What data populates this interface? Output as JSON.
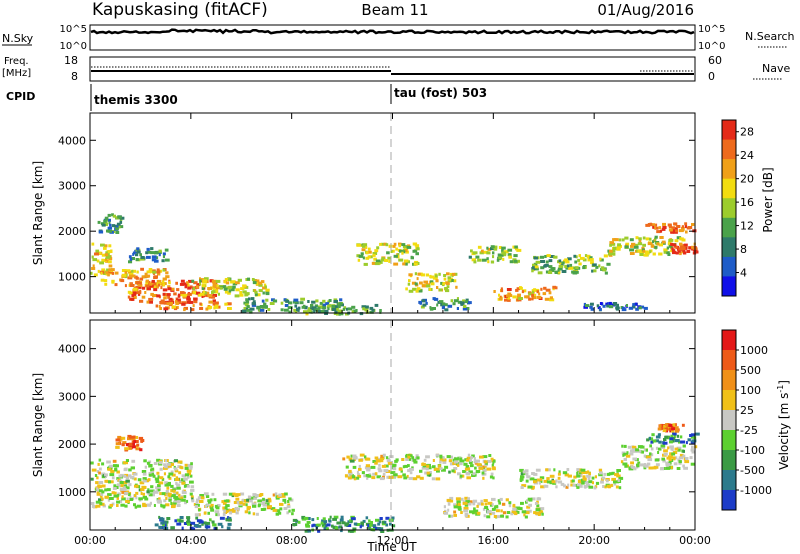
{
  "header": {
    "station": "Kapuskasing (fitACF)",
    "beam": "Beam 11",
    "date": "01/Aug/2016"
  },
  "status_panel": {
    "nsky_label": "N.Sky",
    "nsky_ticks": [
      "10^5",
      "10^0"
    ],
    "nsearch_label": "N.Search",
    "nsearch_ticks": [
      "10^5",
      "10^0"
    ],
    "freq_label": "Freq.",
    "freq_unit": "[MHz]",
    "freq_ticks": [
      "18",
      "8"
    ],
    "nave_label": "Nave",
    "nave_ticks": [
      "60",
      "0"
    ],
    "cpid_label": "CPID",
    "cpid_segments": [
      {
        "name": "themis 3300",
        "start_hour": 0
      },
      {
        "name": "tau (fost) 503",
        "start_hour": 12
      }
    ]
  },
  "chart_data": [
    {
      "type": "heatmap",
      "title": "Power",
      "xlabel": "Time UT",
      "ylabel": "Slant Range [km]",
      "x_ticks": [
        "00:00",
        "04:00",
        "08:00",
        "12:00",
        "16:00",
        "20:00",
        "00:00"
      ],
      "xlim_hours": [
        0,
        24
      ],
      "y_ticks": [
        1000,
        2000,
        3000,
        4000
      ],
      "ylim": [
        200,
        4600
      ],
      "colorbar": {
        "label": "Power [dB]",
        "ticks": [
          "4",
          "8",
          "12",
          "16",
          "20",
          "24",
          "28"
        ],
        "range": [
          0,
          30
        ],
        "colors": [
          "#1010e8",
          "#1e5cc8",
          "#2e7a6a",
          "#4aa24a",
          "#9ccc2c",
          "#f2dc10",
          "#f0a018",
          "#ee6a1c",
          "#e42a18"
        ]
      },
      "regions": [
        {
          "t0": 0.0,
          "t1": 0.8,
          "r0": 1050,
          "r1": 1750,
          "level": 0.62
        },
        {
          "t0": 0.3,
          "t1": 3.0,
          "r0": 800,
          "r1": 1200,
          "level": 0.7
        },
        {
          "t0": 1.5,
          "t1": 5.0,
          "r0": 450,
          "r1": 950,
          "level": 0.82
        },
        {
          "t0": 0.2,
          "t1": 1.2,
          "r0": 2000,
          "r1": 2400,
          "level": 0.35
        },
        {
          "t0": 1.5,
          "t1": 3.0,
          "r0": 1350,
          "r1": 1650,
          "level": 0.3
        },
        {
          "t0": 2.5,
          "t1": 5.5,
          "r0": 300,
          "r1": 500,
          "level": 0.75
        },
        {
          "t0": 4.0,
          "t1": 7.0,
          "r0": 600,
          "r1": 1000,
          "level": 0.55
        },
        {
          "t0": 6.0,
          "t1": 10.0,
          "r0": 250,
          "r1": 550,
          "level": 0.35
        },
        {
          "t0": 8.5,
          "t1": 11.5,
          "r0": 200,
          "r1": 400,
          "level": 0.4
        },
        {
          "t0": 10.5,
          "t1": 13.0,
          "r0": 1300,
          "r1": 1750,
          "level": 0.55
        },
        {
          "t0": 12.5,
          "t1": 14.5,
          "r0": 700,
          "r1": 1100,
          "level": 0.6
        },
        {
          "t0": 13.0,
          "t1": 15.0,
          "r0": 300,
          "r1": 550,
          "level": 0.3
        },
        {
          "t0": 15.0,
          "t1": 17.0,
          "r0": 1350,
          "r1": 1700,
          "level": 0.5
        },
        {
          "t0": 16.0,
          "t1": 18.5,
          "r0": 500,
          "r1": 800,
          "level": 0.72
        },
        {
          "t0": 17.5,
          "t1": 20.5,
          "r0": 1100,
          "r1": 1500,
          "level": 0.45
        },
        {
          "t0": 20.5,
          "t1": 23.5,
          "r0": 1500,
          "r1": 1900,
          "level": 0.55
        },
        {
          "t0": 22.0,
          "t1": 24.0,
          "r0": 2000,
          "r1": 2200,
          "level": 0.85
        },
        {
          "t0": 23.0,
          "t1": 24.0,
          "r0": 1550,
          "r1": 1750,
          "level": 0.92
        },
        {
          "t0": 19.5,
          "t1": 22.0,
          "r0": 300,
          "r1": 450,
          "level": 0.2
        }
      ]
    },
    {
      "type": "heatmap",
      "title": "Velocity",
      "xlabel": "Time UT",
      "ylabel": "Slant Range [km]",
      "x_ticks": [
        "00:00",
        "04:00",
        "08:00",
        "12:00",
        "16:00",
        "20:00",
        "00:00"
      ],
      "xlim_hours": [
        0,
        24
      ],
      "y_ticks": [
        1000,
        2000,
        3000,
        4000
      ],
      "ylim": [
        200,
        4600
      ],
      "colorbar": {
        "label": "Velocity [m s",
        "label_superscript": "-1",
        "label_close": "]",
        "ticks": [
          "1000",
          "500",
          "100",
          "25",
          "-25",
          "-100",
          "-500",
          "-1000"
        ],
        "colors": [
          "#1c3cc8",
          "#2c7a8c",
          "#3a9a44",
          "#5cd030",
          "#c8c8c4",
          "#f0c018",
          "#f09018",
          "#ee5a18",
          "#e41818"
        ]
      },
      "regions": [
        {
          "t0": 0.0,
          "t1": 4.0,
          "r0": 700,
          "r1": 1700,
          "level": 0.5
        },
        {
          "t0": 4.0,
          "t1": 8.0,
          "r0": 550,
          "r1": 1000,
          "level": 0.5
        },
        {
          "t0": 2.5,
          "t1": 5.5,
          "r0": 250,
          "r1": 500,
          "level": 0.2
        },
        {
          "t0": 1.0,
          "t1": 2.0,
          "r0": 1900,
          "r1": 2200,
          "level": 0.75
        },
        {
          "t0": 8.0,
          "t1": 12.0,
          "r0": 200,
          "r1": 500,
          "level": 0.25
        },
        {
          "t0": 10.0,
          "t1": 16.0,
          "r0": 1300,
          "r1": 1800,
          "level": 0.5
        },
        {
          "t0": 14.0,
          "t1": 18.0,
          "r0": 500,
          "r1": 900,
          "level": 0.5
        },
        {
          "t0": 17.0,
          "t1": 21.0,
          "r0": 1100,
          "r1": 1500,
          "level": 0.5
        },
        {
          "t0": 21.0,
          "t1": 24.0,
          "r0": 1500,
          "r1": 2000,
          "level": 0.5
        },
        {
          "t0": 22.0,
          "t1": 24.0,
          "r0": 2050,
          "r1": 2250,
          "level": 0.2
        },
        {
          "t0": 22.5,
          "t1": 23.5,
          "r0": 2300,
          "r1": 2450,
          "level": 0.8
        }
      ]
    }
  ]
}
